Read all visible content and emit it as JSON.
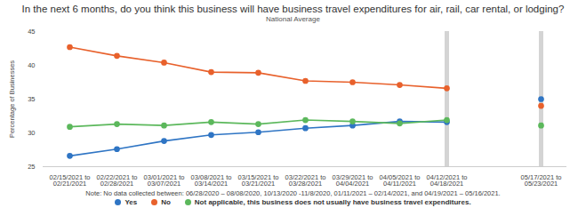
{
  "chart_data": {
    "type": "line",
    "title": "In the next 6 months, do you think this business will have business travel expenditures for air, rail, car rental, or lodging?",
    "subtitle": "National Average",
    "y_label": "Percentage of Businesses",
    "note": "Note: No data collected between: 06/28/2020 – 08/08/2020, 10/13/2020 -11/8/2020, 01/11/2021 – 02/14/2021, and 04/19/2021 – 05/16/2021.",
    "categories": [
      "02/15/2021 to\n02/21/2021",
      "02/22/2021 to\n02/28/2021",
      "03/01/2021 to\n03/07/2021",
      "03/08/2021 to\n03/14/2021",
      "03/15/2021 to\n03/21/2021",
      "03/22/2021 to\n03/28/2021",
      "03/29/2021 to\n04/04/2021",
      "04/05/2021 to\n04/11/2021",
      "04/12/2021 to\n04/18/2021",
      null,
      "05/17/2021 to\n05/23/2021"
    ],
    "series": [
      {
        "name": "Yes",
        "color": "#2f75c4",
        "values": [
          26.6,
          27.6,
          28.8,
          29.7,
          30.1,
          30.7,
          31.1,
          31.7,
          31.6,
          null,
          35.0
        ]
      },
      {
        "name": "No",
        "color": "#e8612c",
        "values": [
          42.7,
          41.4,
          40.4,
          39.0,
          38.9,
          37.7,
          37.5,
          37.1,
          36.6,
          null,
          34.0
        ]
      },
      {
        "name": "Not applicable, this business does not usually have business travel expenditures.",
        "color": "#5cb85c",
        "values": [
          30.9,
          31.3,
          31.1,
          31.6,
          31.3,
          31.9,
          31.7,
          31.4,
          31.9,
          null,
          31.1
        ]
      }
    ],
    "ylim": [
      25,
      45
    ],
    "yticks": [
      25,
      30,
      35,
      40,
      45
    ],
    "grid": false,
    "legend": "bottom",
    "marker": "circle",
    "line_style": "solid"
  }
}
